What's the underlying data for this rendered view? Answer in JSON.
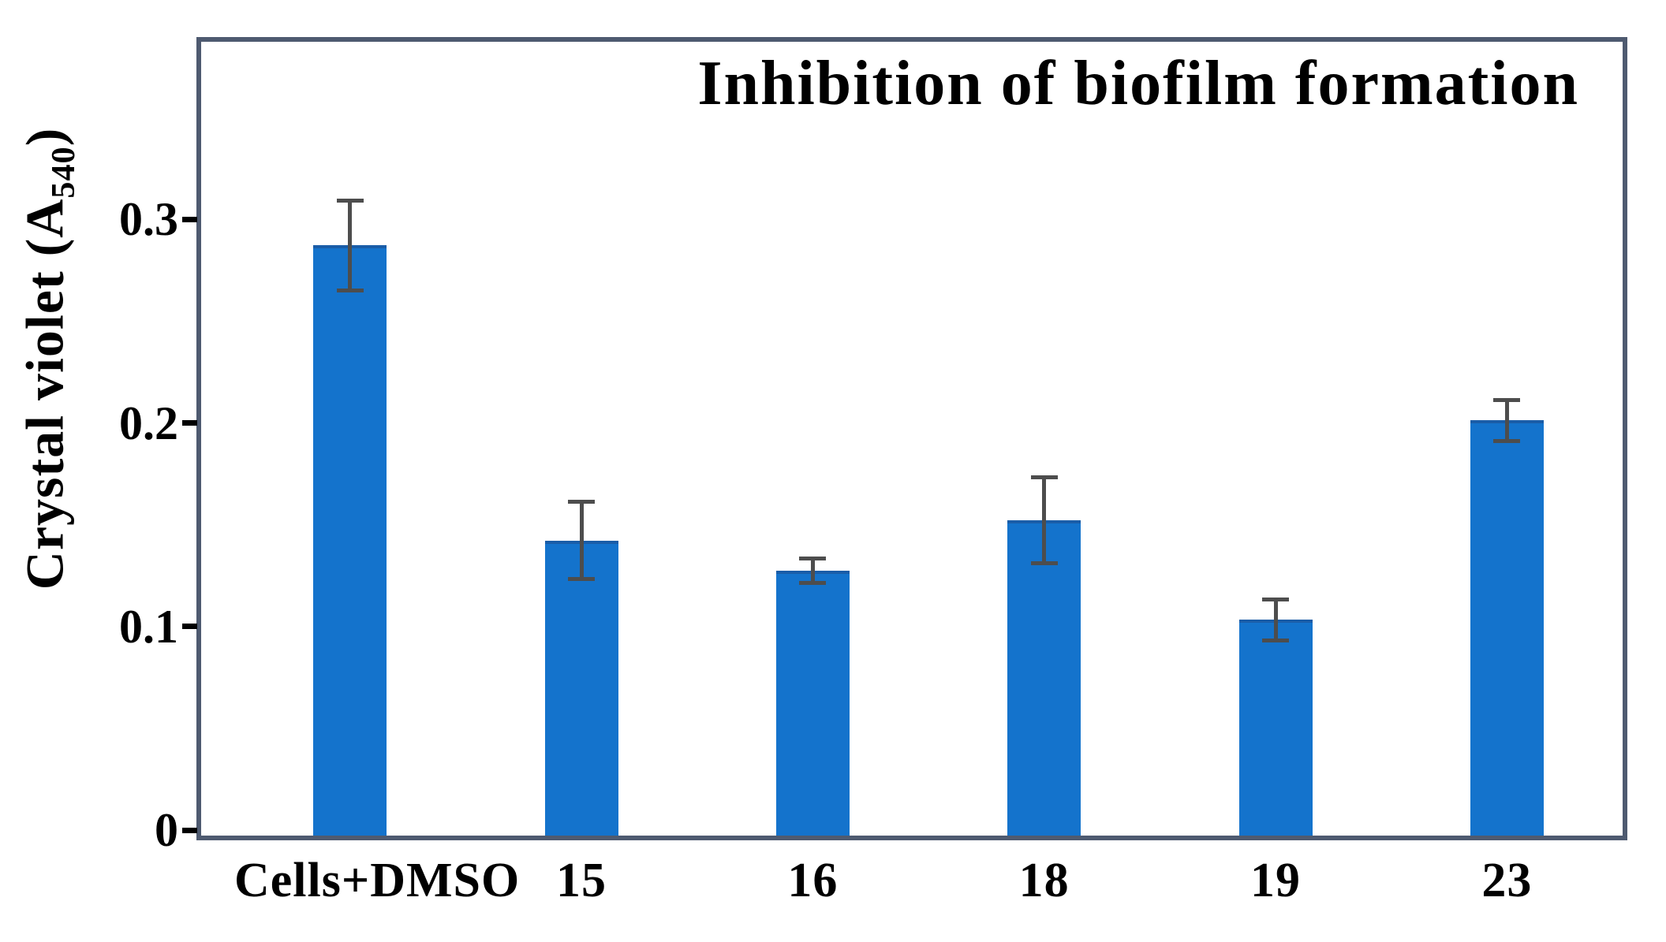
{
  "chart_data": {
    "type": "bar",
    "title": "Inhibition of biofilm formation",
    "ylabel": "Crystal violet (A540)",
    "ylabel_parts": {
      "prefix": "Crystal violet (A",
      "sub": "540",
      "suffix": ")"
    },
    "xlabel": "",
    "categories": [
      "Cells+DMSO",
      "15",
      "16",
      "18",
      "19",
      "23"
    ],
    "values": [
      0.29,
      0.145,
      0.13,
      0.155,
      0.106,
      0.204
    ],
    "errors": [
      0.022,
      0.019,
      0.006,
      0.021,
      0.01,
      0.01
    ],
    "yticks": [
      0,
      0.1,
      0.2,
      0.3
    ],
    "ytick_labels": [
      "0",
      "0.1",
      "0.2",
      "0.3"
    ],
    "ylim": [
      0,
      0.39
    ],
    "grid": false,
    "legend": null,
    "colors": {
      "bar": "#1473cc",
      "bar_top_edge": "#1a5da8",
      "frame": "#4e5a70",
      "error_bar": "#4d4d4d",
      "text": "#000000",
      "background": "#ffffff"
    }
  }
}
